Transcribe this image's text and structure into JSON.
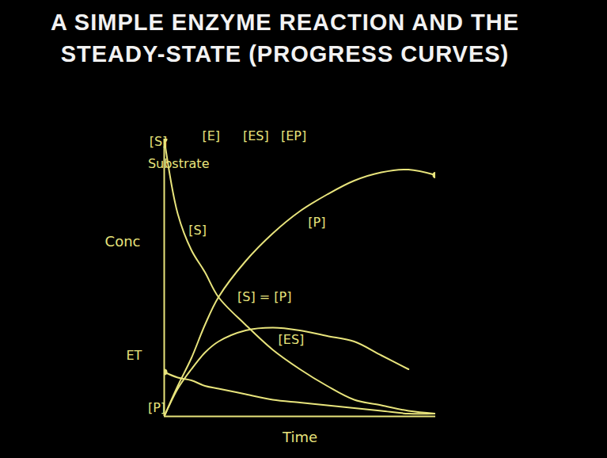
{
  "chart_data": {
    "type": "line",
    "title": "A SIMPLE ENZYME REACTION AND THE STEADY-STATE (PROGRESS CURVES)",
    "x_label": "Time",
    "y_label": "Conc",
    "x": [
      0,
      5,
      10,
      15,
      20,
      30,
      40,
      50,
      60,
      70,
      80,
      90,
      100
    ],
    "series": [
      {
        "name": "[S]",
        "color": "#e8e47c",
        "marker": "start",
        "values": [
          100,
          73,
          60,
          52,
          43,
          33,
          24,
          17,
          11,
          6,
          4,
          2,
          1
        ]
      },
      {
        "name": "[P]",
        "color": "#e8e47c",
        "marker": "end",
        "values": [
          0,
          11,
          21,
          33,
          43,
          56,
          66,
          74,
          80,
          85,
          88,
          89,
          87
        ]
      },
      {
        "name": "[ES]",
        "color": "#e8e47c",
        "values": [
          0,
          10,
          17,
          23,
          27,
          31,
          32,
          31,
          29,
          27,
          22,
          17,
          null
        ]
      },
      {
        "name": "ET",
        "color": "#e8e47c",
        "marker": "start",
        "values": [
          16,
          14,
          13,
          11,
          10,
          8,
          6,
          5,
          4,
          3,
          2,
          1,
          1
        ]
      }
    ],
    "xlim": [
      0,
      100
    ],
    "ylim": [
      0,
      100
    ],
    "xticks": [],
    "yticks": [],
    "tick_labels": false,
    "grid": false,
    "annotations": [
      {
        "text": "[S]",
        "x": -5.5,
        "y": 99
      },
      {
        "text": "Substrate",
        "x": -6,
        "y": 91
      },
      {
        "text": "[E]",
        "x": 14,
        "y": 101
      },
      {
        "text": "[ES]",
        "x": 29,
        "y": 101
      },
      {
        "text": "[EP]",
        "x": 43,
        "y": 101
      },
      {
        "text": "[S]",
        "x": 9,
        "y": 67
      },
      {
        "text": "[P]",
        "x": 53,
        "y": 70
      },
      {
        "text": "[S] = [P]",
        "x": 27,
        "y": 43
      },
      {
        "text": "[ES]",
        "x": 42,
        "y": 27.5
      },
      {
        "text": "ET",
        "x": -14,
        "y": 22
      },
      {
        "text": "[P]",
        "x": -6,
        "y": 3
      }
    ]
  }
}
